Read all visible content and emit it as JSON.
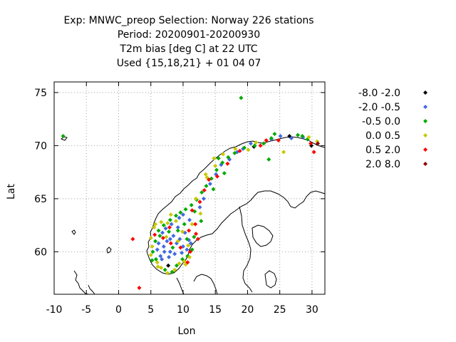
{
  "chart_data": {
    "type": "scatter",
    "title_lines": [
      "Exp: MNWC_preop   Selection: Norway    226 stations",
      "Period: 20200901-20200930",
      "T2m bias [deg C] at  22 UTC",
      "Used {15,18,21} + 01 04 07"
    ],
    "xlabel": "Lon",
    "ylabel": "Lat",
    "xlim": [
      -10,
      32
    ],
    "ylim": [
      56,
      76
    ],
    "xticks": [
      -10,
      -5,
      0,
      5,
      10,
      15,
      20,
      25,
      30
    ],
    "yticks": [
      60,
      65,
      70,
      75
    ],
    "grid": true,
    "legend_position": "right",
    "series": [
      {
        "name": "-8.0 -2.0",
        "color": "#000000",
        "points": [
          [
            7.7,
            58.7
          ],
          [
            29.9,
            70.0
          ],
          [
            26.5,
            70.9
          ],
          [
            21.0,
            69.9
          ]
        ]
      },
      {
        "name": "-2.0 -0.5",
        "color": "#4169e1",
        "points": [
          [
            6.0,
            60.2
          ],
          [
            6.5,
            59.6
          ],
          [
            7.0,
            60.5
          ],
          [
            7.5,
            61.0
          ],
          [
            8.0,
            60.0
          ],
          [
            8.5,
            61.5
          ],
          [
            9.0,
            60.8
          ],
          [
            9.5,
            61.2
          ],
          [
            10.0,
            60.5
          ],
          [
            6.8,
            61.8
          ],
          [
            7.3,
            62.2
          ],
          [
            8.2,
            62.6
          ],
          [
            9.2,
            62.3
          ],
          [
            10.3,
            61.8
          ],
          [
            10.9,
            61.1
          ],
          [
            6.2,
            60.8
          ],
          [
            7.8,
            59.5
          ],
          [
            9.8,
            59.9
          ],
          [
            10.6,
            60.2
          ],
          [
            11.2,
            60.8
          ],
          [
            7.1,
            60.0
          ],
          [
            8.7,
            59.8
          ],
          [
            9.4,
            63.2
          ],
          [
            10.0,
            63.5
          ],
          [
            11.0,
            63.0
          ],
          [
            12.6,
            64.2
          ],
          [
            13.2,
            65.0
          ],
          [
            14.2,
            66.4
          ],
          [
            15.1,
            67.3
          ],
          [
            15.9,
            68.2
          ],
          [
            17.2,
            68.7
          ],
          [
            18.4,
            69.4
          ],
          [
            19.3,
            69.7
          ],
          [
            20.5,
            70.2
          ],
          [
            23.7,
            70.6
          ],
          [
            25.1,
            70.9
          ],
          [
            26.8,
            70.7
          ],
          [
            28.6,
            70.8
          ],
          [
            8.0,
            61.2
          ],
          [
            6.7,
            59.3
          ]
        ]
      },
      {
        "name": "-0.5 0.0",
        "color": "#00aa00",
        "points": [
          [
            -8.6,
            70.9
          ],
          [
            19.0,
            74.5
          ],
          [
            5.3,
            60.0
          ],
          [
            5.7,
            61.0
          ],
          [
            6.2,
            62.0
          ],
          [
            7.0,
            62.5
          ],
          [
            8.0,
            63.0
          ],
          [
            8.9,
            63.4
          ],
          [
            9.6,
            63.7
          ],
          [
            10.4,
            64.0
          ],
          [
            11.3,
            64.4
          ],
          [
            12.1,
            64.9
          ],
          [
            12.9,
            65.6
          ],
          [
            13.6,
            66.2
          ],
          [
            14.4,
            66.9
          ],
          [
            15.2,
            67.7
          ],
          [
            16.1,
            68.4
          ],
          [
            17.0,
            68.9
          ],
          [
            18.0,
            69.3
          ],
          [
            19.5,
            69.8
          ],
          [
            21.1,
            70.0
          ],
          [
            22.5,
            70.2
          ],
          [
            23.7,
            70.7
          ],
          [
            24.2,
            71.1
          ],
          [
            27.8,
            71.0
          ],
          [
            28.5,
            70.9
          ],
          [
            29.3,
            70.6
          ],
          [
            23.3,
            68.7
          ],
          [
            5.8,
            59.3
          ],
          [
            7.2,
            58.3
          ],
          [
            8.3,
            58.1
          ],
          [
            9.0,
            58.7
          ],
          [
            9.9,
            59.3
          ],
          [
            10.7,
            59.6
          ],
          [
            11.4,
            60.2
          ],
          [
            10.6,
            61.2
          ],
          [
            9.2,
            62.0
          ],
          [
            8.4,
            60.4
          ],
          [
            7.8,
            61.9
          ],
          [
            12.8,
            62.9
          ],
          [
            11.7,
            61.4
          ],
          [
            5.2,
            59.2
          ],
          [
            14.7,
            65.9
          ],
          [
            16.4,
            67.4
          ],
          [
            10.2,
            62.6
          ],
          [
            6.4,
            61.5
          ],
          [
            15.5,
            68.8
          ],
          [
            11.8,
            63.8
          ]
        ]
      },
      {
        "name": "0.0 0.5",
        "color": "#c8c800",
        "points": [
          [
            5.0,
            59.7
          ],
          [
            5.2,
            60.5
          ],
          [
            5.0,
            61.3
          ],
          [
            5.5,
            62.3
          ],
          [
            6.0,
            59.0
          ],
          [
            6.6,
            58.5
          ],
          [
            7.6,
            58.0
          ],
          [
            8.7,
            58.3
          ],
          [
            9.4,
            58.9
          ],
          [
            10.2,
            59.1
          ],
          [
            11.0,
            59.5
          ],
          [
            10.8,
            60.6
          ],
          [
            9.9,
            61.9
          ],
          [
            8.9,
            62.9
          ],
          [
            7.6,
            62.7
          ],
          [
            6.6,
            62.8
          ],
          [
            5.7,
            62.6
          ],
          [
            13.7,
            67.0
          ],
          [
            15.0,
            68.1
          ],
          [
            18.1,
            69.7
          ],
          [
            21.3,
            70.3
          ],
          [
            25.6,
            69.4
          ],
          [
            30.8,
            70.4
          ],
          [
            29.5,
            70.8
          ],
          [
            14.8,
            68.8
          ],
          [
            16.2,
            69.2
          ],
          [
            11.4,
            62.6
          ],
          [
            9.2,
            61.0
          ],
          [
            12.0,
            65.0
          ],
          [
            13.5,
            67.3
          ],
          [
            20.1,
            69.6
          ],
          [
            7.4,
            61.4
          ],
          [
            6.1,
            58.6
          ],
          [
            10.4,
            58.8
          ],
          [
            12.7,
            63.6
          ],
          [
            8.1,
            63.5
          ]
        ]
      },
      {
        "name": "0.5 2.0",
        "color": "#ff0000",
        "points": [
          [
            2.2,
            61.2
          ],
          [
            3.2,
            56.6
          ],
          [
            10.7,
            59.0
          ],
          [
            12.0,
            61.7
          ],
          [
            11.1,
            60.0
          ],
          [
            9.6,
            60.4
          ],
          [
            8.1,
            60.8
          ],
          [
            6.9,
            61.3
          ],
          [
            5.6,
            61.6
          ],
          [
            10.9,
            62.0
          ],
          [
            11.9,
            62.6
          ],
          [
            11.4,
            63.9
          ],
          [
            12.6,
            64.7
          ],
          [
            14.0,
            66.8
          ],
          [
            15.3,
            67.1
          ],
          [
            16.9,
            68.3
          ],
          [
            18.8,
            69.5
          ],
          [
            22.0,
            70.0
          ],
          [
            30.3,
            69.4
          ],
          [
            29.8,
            70.2
          ],
          [
            22.9,
            70.5
          ],
          [
            24.8,
            70.5
          ],
          [
            12.3,
            61.2
          ],
          [
            7.9,
            62.3
          ],
          [
            13.3,
            65.8
          ]
        ]
      },
      {
        "name": "2.0 8.0",
        "color": "#8b0000",
        "points": [
          [
            30.9,
            70.2
          ]
        ]
      }
    ]
  }
}
